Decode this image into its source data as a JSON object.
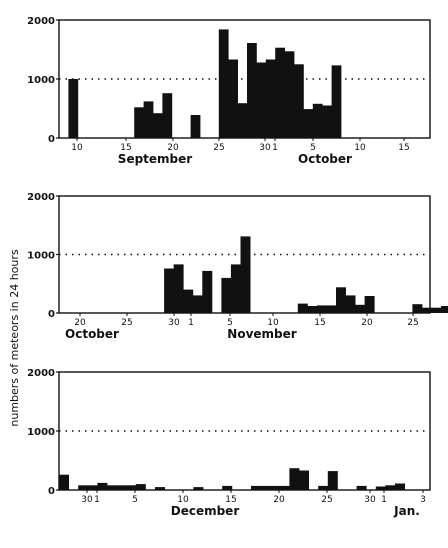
{
  "chart_data": [
    {
      "type": "bar",
      "ylabel": "numbers of meteors in 24 hours",
      "ylim": [
        0,
        2000
      ],
      "y_ticks": [
        "2000",
        "1000",
        "0"
      ],
      "reference_line": 1000,
      "x_ticks": [
        "10",
        "15",
        "20",
        "25",
        "30",
        "1",
        "5",
        "10",
        "15"
      ],
      "month_labels": [
        "September",
        "October"
      ],
      "categories": [
        "Sep 9",
        "Sep 16",
        "Sep 17",
        "Sep 18",
        "Sep 19",
        "Sep 22",
        "Sep 25",
        "Sep 26",
        "Sep 27",
        "Sep 28",
        "Sep 29",
        "Sep 30",
        "Oct 1",
        "Oct 2",
        "Oct 3",
        "Oct 4",
        "Oct 5",
        "Oct 6",
        "Oct 7"
      ],
      "values": [
        1000,
        520,
        620,
        420,
        760,
        390,
        1840,
        1330,
        590,
        1610,
        1280,
        1330,
        1530,
        1470,
        1250,
        490,
        580,
        550,
        1230
      ]
    },
    {
      "type": "bar",
      "ylabel": "numbers of meteors in 24 hours",
      "ylim": [
        0,
        2000
      ],
      "y_ticks": [
        "2000",
        "1000",
        "0"
      ],
      "reference_line": 1000,
      "x_ticks": [
        "20",
        "25",
        "30",
        "1",
        "5",
        "10",
        "15",
        "20",
        "25"
      ],
      "month_labels": [
        "October",
        "November"
      ],
      "categories": [
        "Oct 27",
        "Oct 28",
        "Oct 29",
        "Oct 30",
        "Oct 31",
        "Nov 2",
        "Nov 3",
        "Nov 4",
        "Nov 10",
        "Nov 11",
        "Nov 12",
        "Nov 13",
        "Nov 14",
        "Nov 15",
        "Nov 16",
        "Nov 17",
        "Nov 22",
        "Nov 23",
        "Nov 24",
        "Nov 25"
      ],
      "values": [
        760,
        830,
        400,
        300,
        720,
        600,
        830,
        1310,
        160,
        120,
        130,
        130,
        440,
        300,
        140,
        290,
        150,
        90,
        90,
        120
      ]
    },
    {
      "type": "bar",
      "ylabel": "numbers of meteors in 24 hours",
      "ylim": [
        0,
        2000
      ],
      "y_ticks": [
        "2000",
        "1000",
        "0"
      ],
      "reference_line": 1000,
      "x_ticks": [
        "30",
        "1",
        "5",
        "10",
        "15",
        "20",
        "25",
        "30",
        "1",
        "3"
      ],
      "month_labels": [
        "December",
        "Jan."
      ],
      "categories": [
        "Nov 26",
        "Nov 28",
        "Nov 29",
        "Nov 30",
        "Dec 1",
        "Dec 2",
        "Dec 3",
        "Dec 4",
        "Dec 6",
        "Dec 10",
        "Dec 13",
        "Dec 16",
        "Dec 17",
        "Dec 18",
        "Dec 19",
        "Dec 20",
        "Dec 21",
        "Dec 23",
        "Dec 24",
        "Dec 27",
        "Dec 29",
        "Dec 30",
        "Dec 31"
      ],
      "values": [
        260,
        80,
        80,
        120,
        80,
        80,
        80,
        100,
        50,
        50,
        70,
        70,
        70,
        70,
        70,
        370,
        330,
        70,
        320,
        70,
        60,
        80,
        110
      ]
    }
  ]
}
